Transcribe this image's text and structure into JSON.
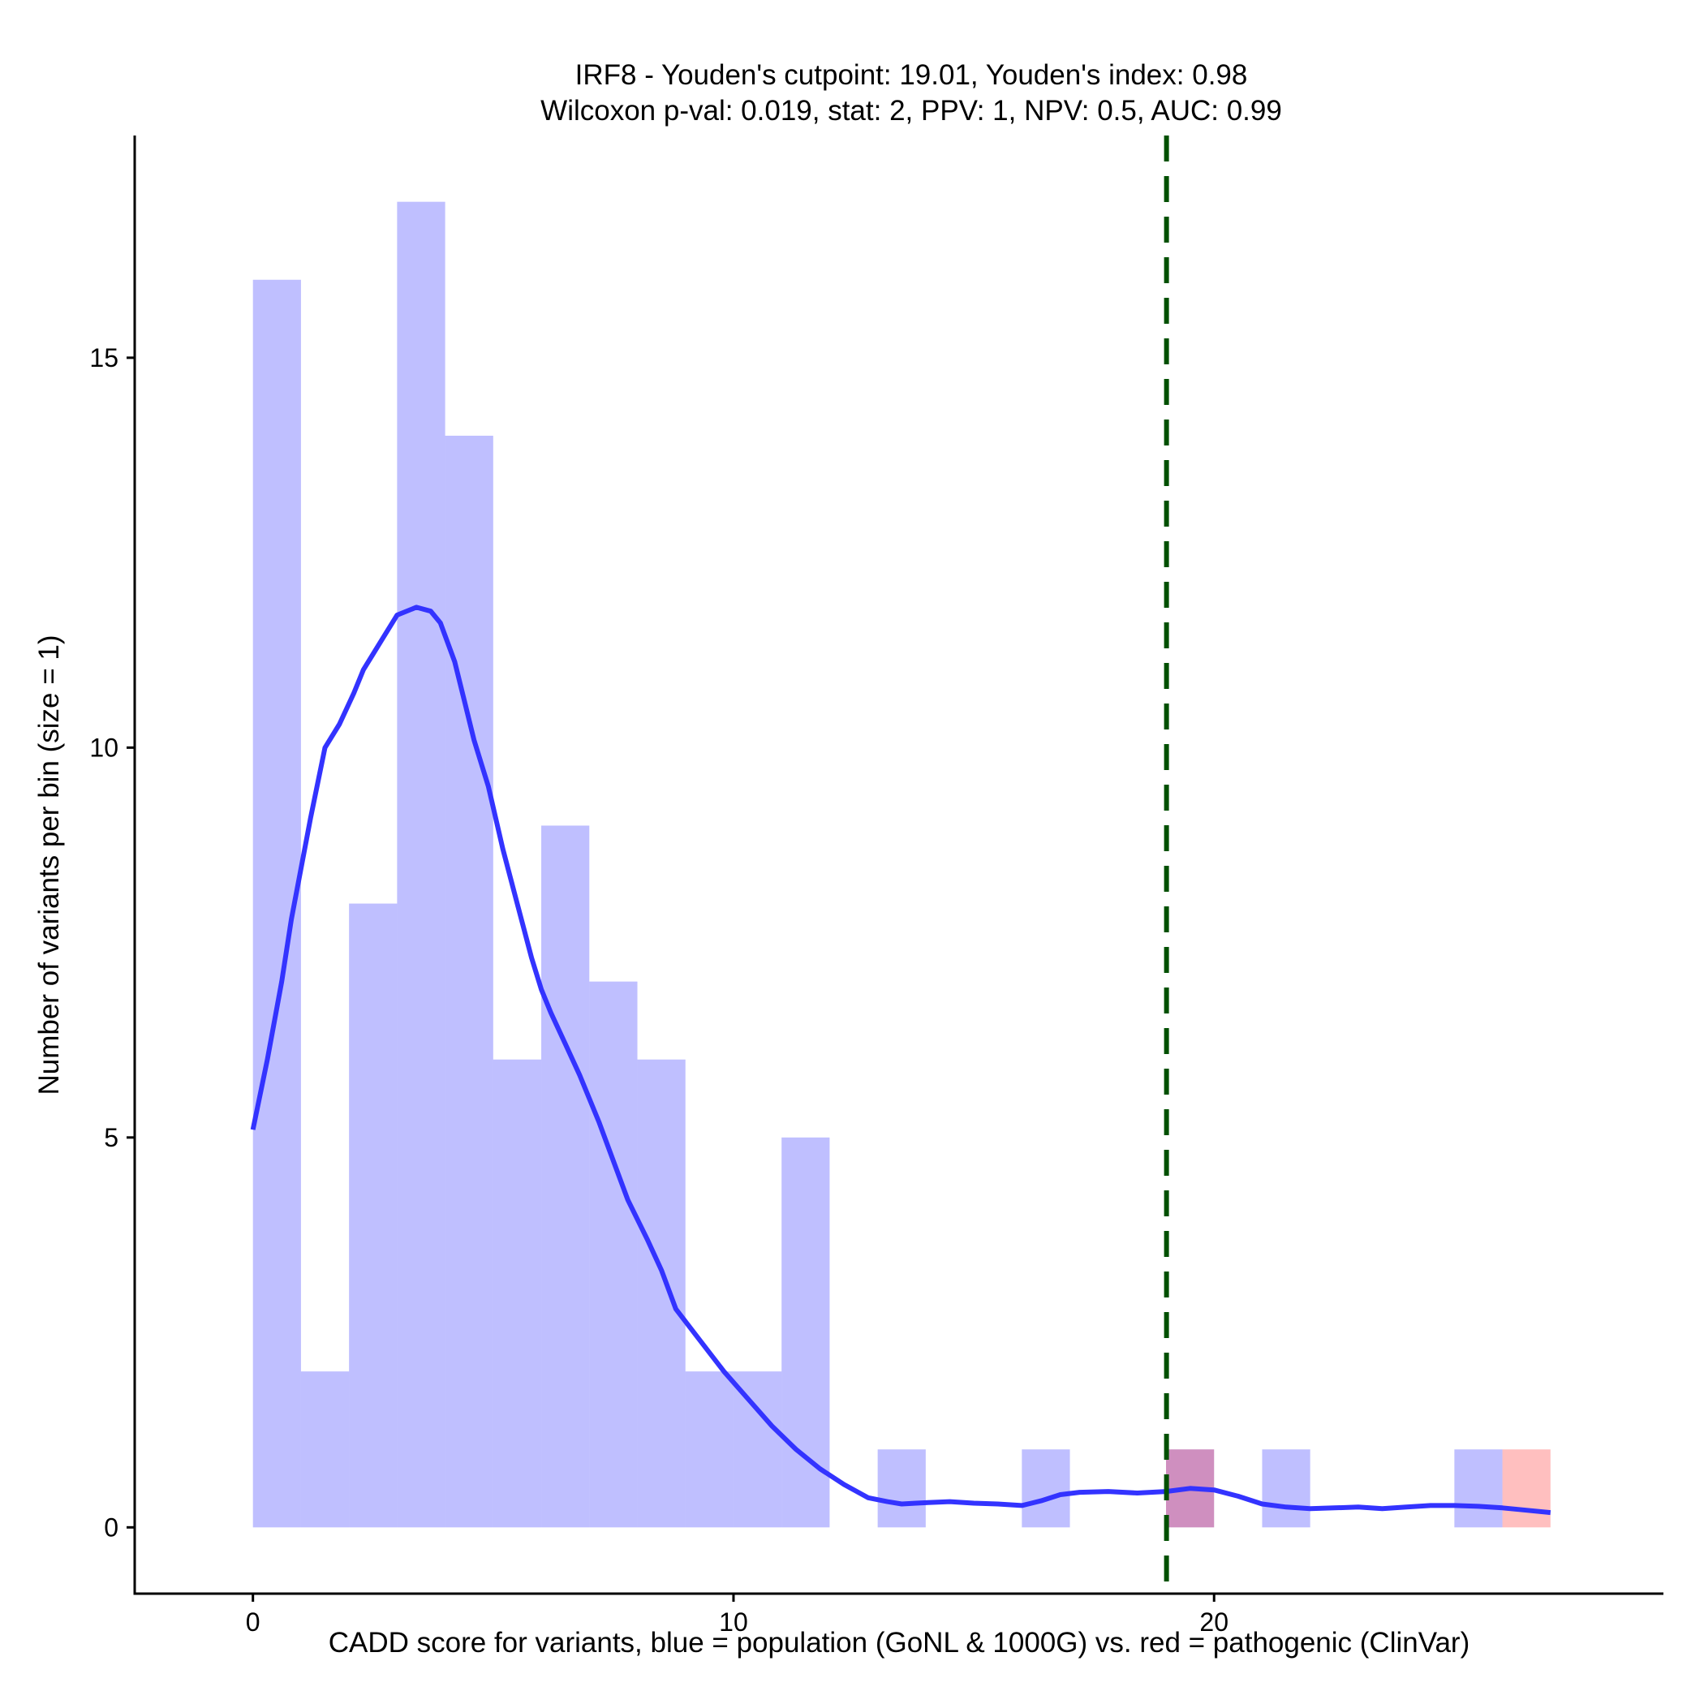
{
  "chart_data": {
    "type": "bar",
    "title": "IRF8 - Youden's cutpoint: 19.01, Youden's index: 0.98",
    "subtitle": "Wilcoxon p-val: 0.019, stat: 2, PPV: 1, NPV: 0.5, AUC: 0.99",
    "xlabel": "CADD score for variants, blue = population (GoNL & 1000G) vs. red = pathogenic (ClinVar)",
    "ylabel": "Number of variants per bin (size = 1)",
    "xlim": [
      -2.46,
      29.35
    ],
    "ylim": [
      -0.85,
      17.85
    ],
    "x_ticks": [
      0,
      10,
      20
    ],
    "y_ticks": [
      0,
      5,
      10,
      15
    ],
    "bin_size": 1,
    "grid": false,
    "legend": "none",
    "series": [
      {
        "name": "population (GoNL & 1000G)",
        "color": "#0000ff",
        "opacity": 0.25,
        "bins": [
          {
            "x0": 0,
            "x1": 1,
            "count": 16
          },
          {
            "x0": 1,
            "x1": 2,
            "count": 2
          },
          {
            "x0": 2,
            "x1": 3,
            "count": 8
          },
          {
            "x0": 3,
            "x1": 4,
            "count": 17
          },
          {
            "x0": 4,
            "x1": 5,
            "count": 14
          },
          {
            "x0": 5,
            "x1": 6,
            "count": 6
          },
          {
            "x0": 6,
            "x1": 7,
            "count": 9
          },
          {
            "x0": 7,
            "x1": 8,
            "count": 7
          },
          {
            "x0": 8,
            "x1": 9,
            "count": 6
          },
          {
            "x0": 9,
            "x1": 10,
            "count": 2
          },
          {
            "x0": 10,
            "x1": 11,
            "count": 2
          },
          {
            "x0": 11,
            "x1": 12,
            "count": 5
          },
          {
            "x0": 13,
            "x1": 14,
            "count": 1
          },
          {
            "x0": 16,
            "x1": 17,
            "count": 1
          },
          {
            "x0": 19,
            "x1": 20,
            "count": 1
          },
          {
            "x0": 21,
            "x1": 22,
            "count": 1
          },
          {
            "x0": 25,
            "x1": 26,
            "count": 1
          }
        ]
      },
      {
        "name": "pathogenic (ClinVar)",
        "color": "#ff0000",
        "opacity": 0.25,
        "bins": [
          {
            "x0": 19,
            "x1": 20,
            "count": 1
          },
          {
            "x0": 26,
            "x1": 27,
            "count": 1
          }
        ]
      }
    ],
    "density_curve": {
      "color": "#3333ff",
      "x": [
        0.0,
        0.3,
        0.6,
        0.8,
        1.2,
        1.5,
        1.8,
        2.1,
        2.3,
        2.5,
        2.7,
        3.0,
        3.4,
        3.7,
        3.9,
        4.2,
        4.4,
        4.6,
        4.9,
        5.2,
        5.5,
        5.8,
        6.0,
        6.2,
        6.5,
        6.8,
        7.2,
        7.5,
        7.8,
        8.2,
        8.5,
        8.8,
        9.3,
        9.8,
        10.3,
        10.8,
        11.3,
        11.8,
        12.3,
        12.8,
        13.2,
        13.5,
        13.8,
        14.1,
        14.5,
        15.0,
        15.5,
        16.0,
        16.4,
        16.8,
        17.2,
        17.8,
        18.4,
        19.0,
        19.5,
        20.0,
        20.5,
        21.0,
        21.5,
        22.0,
        22.5,
        23.0,
        23.5,
        24.0,
        24.5,
        25.0,
        25.5,
        26.0,
        26.5,
        27.0
      ],
      "y": [
        5.1,
        6.0,
        7.0,
        7.8,
        9.1,
        10.0,
        10.3,
        10.7,
        11.0,
        11.2,
        11.4,
        11.7,
        11.8,
        11.75,
        11.6,
        11.1,
        10.6,
        10.1,
        9.5,
        8.7,
        8.0,
        7.3,
        6.9,
        6.6,
        6.2,
        5.8,
        5.2,
        4.7,
        4.2,
        3.7,
        3.3,
        2.8,
        2.4,
        2.0,
        1.65,
        1.3,
        1.0,
        0.75,
        0.55,
        0.38,
        0.33,
        0.3,
        0.31,
        0.32,
        0.33,
        0.31,
        0.3,
        0.28,
        0.34,
        0.42,
        0.45,
        0.46,
        0.44,
        0.46,
        0.5,
        0.48,
        0.4,
        0.3,
        0.26,
        0.24,
        0.25,
        0.26,
        0.24,
        0.26,
        0.28,
        0.28,
        0.27,
        0.25,
        0.22,
        0.19
      ]
    },
    "cutpoint": {
      "x": 19.01,
      "color": "#005000",
      "style": "dashed"
    }
  }
}
